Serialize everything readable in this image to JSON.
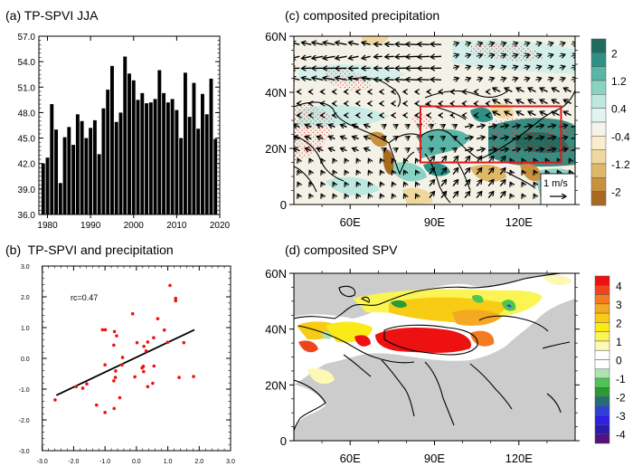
{
  "chart_data": [
    {
      "id": "a",
      "type": "bar",
      "title": "(a) TP-SPVI JJA",
      "xlabel": "",
      "ylabel": "",
      "ylim": [
        36.0,
        57.0
      ],
      "xlim": [
        1978,
        2020
      ],
      "yticks": [
        "36.0",
        "39.0",
        "42.0",
        "45.0",
        "48.0",
        "51.0",
        "54.0",
        "57.0"
      ],
      "xticks": [
        "1980",
        "1990",
        "2000",
        "2010",
        "2020"
      ],
      "categories": [
        1979,
        1980,
        1981,
        1982,
        1983,
        1984,
        1985,
        1986,
        1987,
        1988,
        1989,
        1990,
        1991,
        1992,
        1993,
        1994,
        1995,
        1996,
        1997,
        1998,
        1999,
        2000,
        2001,
        2002,
        2003,
        2004,
        2005,
        2006,
        2007,
        2008,
        2009,
        2010,
        2011,
        2012,
        2013,
        2014,
        2015,
        2016,
        2017,
        2018,
        2019
      ],
      "values": [
        42.0,
        42.7,
        49.0,
        46.0,
        39.7,
        45.1,
        46.3,
        44.2,
        47.8,
        47.0,
        45.0,
        46.2,
        47.1,
        43.1,
        48.5,
        50.7,
        53.5,
        46.9,
        48.0,
        54.6,
        52.6,
        51.8,
        49.5,
        50.3,
        49.1,
        49.2,
        49.6,
        53.0,
        50.3,
        49.2,
        49.6,
        48.3,
        45.0,
        52.7,
        47.5,
        51.5,
        46.1,
        50.2,
        47.8,
        52.0,
        44.9
      ],
      "bar_color": "#000000",
      "grid": false
    },
    {
      "id": "b",
      "type": "scatter",
      "title": "(b)  TP-SPVI and precipitation",
      "xlabel": "",
      "ylabel": "",
      "xlim": [
        -3.0,
        3.0
      ],
      "ylim": [
        -3.0,
        3.0
      ],
      "xticks": [
        "-3.0",
        "-2.0",
        "-1.0",
        "0.0",
        "1.0",
        "2.0",
        "3.0"
      ],
      "yticks": [
        "-3.0",
        "-2.0",
        "-1.0",
        "0.0",
        "1.0",
        "2.0",
        "3.0"
      ],
      "annotation": "rc=0.47",
      "point_color": "#ee1111",
      "points": [
        [
          -2.59,
          -1.35
        ],
        [
          -1.92,
          -0.92
        ],
        [
          -1.71,
          -0.97
        ],
        [
          -1.58,
          -0.83
        ],
        [
          -1.27,
          -1.52
        ],
        [
          -1.0,
          -1.76
        ],
        [
          -1.08,
          0.93
        ],
        [
          -0.99,
          0.93
        ],
        [
          -1.0,
          -0.21
        ],
        [
          -0.72,
          0.43
        ],
        [
          -0.7,
          0.87
        ],
        [
          -0.63,
          0.73
        ],
        [
          -0.67,
          -0.62
        ],
        [
          -0.66,
          -0.41
        ],
        [
          -0.72,
          -0.73
        ],
        [
          -0.71,
          -1.63
        ],
        [
          -0.53,
          -1.28
        ],
        [
          -0.46,
          -0.21
        ],
        [
          -0.44,
          0.03
        ],
        [
          -0.12,
          1.45
        ],
        [
          -0.05,
          -0.6
        ],
        [
          0.02,
          0.51
        ],
        [
          0.18,
          -0.31
        ],
        [
          0.22,
          -0.26
        ],
        [
          0.23,
          -0.43
        ],
        [
          0.24,
          0.39
        ],
        [
          0.31,
          0.24
        ],
        [
          0.36,
          0.53
        ],
        [
          0.36,
          -0.92
        ],
        [
          0.55,
          0.67
        ],
        [
          0.56,
          -0.25
        ],
        [
          0.52,
          -0.81
        ],
        [
          0.68,
          1.29
        ],
        [
          0.89,
          0.92
        ],
        [
          0.99,
          0.52
        ],
        [
          1.07,
          2.37
        ],
        [
          1.25,
          1.95
        ],
        [
          1.25,
          1.87
        ],
        [
          1.36,
          -0.62
        ],
        [
          1.51,
          0.51
        ],
        [
          1.82,
          -0.59
        ]
      ],
      "regression_line": {
        "x": [
          -2.55,
          1.85
        ],
        "y": [
          -1.2,
          0.93
        ],
        "color": "#000000"
      },
      "grid": false
    },
    {
      "id": "c",
      "type": "heatmap",
      "title": "(c) composited precipitation",
      "xlim_deg_E": [
        40,
        140
      ],
      "ylim_deg_N": [
        0,
        60
      ],
      "xticks": [
        "60E",
        "90E",
        "120E"
      ],
      "xtick_values": [
        60,
        90,
        120
      ],
      "yticks": [
        "0",
        "20N",
        "40N",
        "60N"
      ],
      "ytick_values": [
        0,
        20,
        40,
        60
      ],
      "colorbar": {
        "labels": [
          "2",
          "1.2",
          "0.4",
          "-0.4",
          "-1.2",
          "-2"
        ],
        "colors": [
          "#1f6b5e",
          "#2f9185",
          "#59b5a5",
          "#89d2c4",
          "#bde8e0",
          "#e2f4f1",
          "#f6f3ea",
          "#fbeccc",
          "#f0d79e",
          "#dfb769",
          "#c8913f",
          "#a86a22"
        ]
      },
      "highlight_box": {
        "lon": [
          85,
          135
        ],
        "lat": [
          15,
          35
        ],
        "color": "#e0191b"
      },
      "reference_vector": {
        "label": "1 m/s"
      },
      "vector_field": "schematic (anomalous wind vectors, see script)"
    },
    {
      "id": "d",
      "type": "heatmap",
      "title": "(d) composited SPV",
      "xlim_deg_E": [
        40,
        140
      ],
      "ylim_deg_N": [
        0,
        60
      ],
      "xticks": [
        "60E",
        "90E",
        "120E"
      ],
      "xtick_values": [
        60,
        90,
        120
      ],
      "yticks": [
        "0",
        "20N",
        "40N",
        "60N"
      ],
      "ytick_values": [
        0,
        20,
        40,
        60
      ],
      "colorbar": {
        "labels": [
          "4",
          "3",
          "2",
          "1",
          "0",
          "-1",
          "-2",
          "-3",
          "-4"
        ],
        "colors": [
          "#ee1111",
          "#f2441c",
          "#f47b22",
          "#f5a823",
          "#f8cc15",
          "#faea17",
          "#faf553",
          "#fdf8b3",
          "#ffffff",
          "#ffffff",
          "#aee3b0",
          "#4dc453",
          "#2a9a36",
          "#256d7a",
          "#2f3fd9",
          "#2b1fea",
          "#2a1ab0",
          "#54127f"
        ]
      },
      "masked_color": "#cccccc"
    }
  ]
}
